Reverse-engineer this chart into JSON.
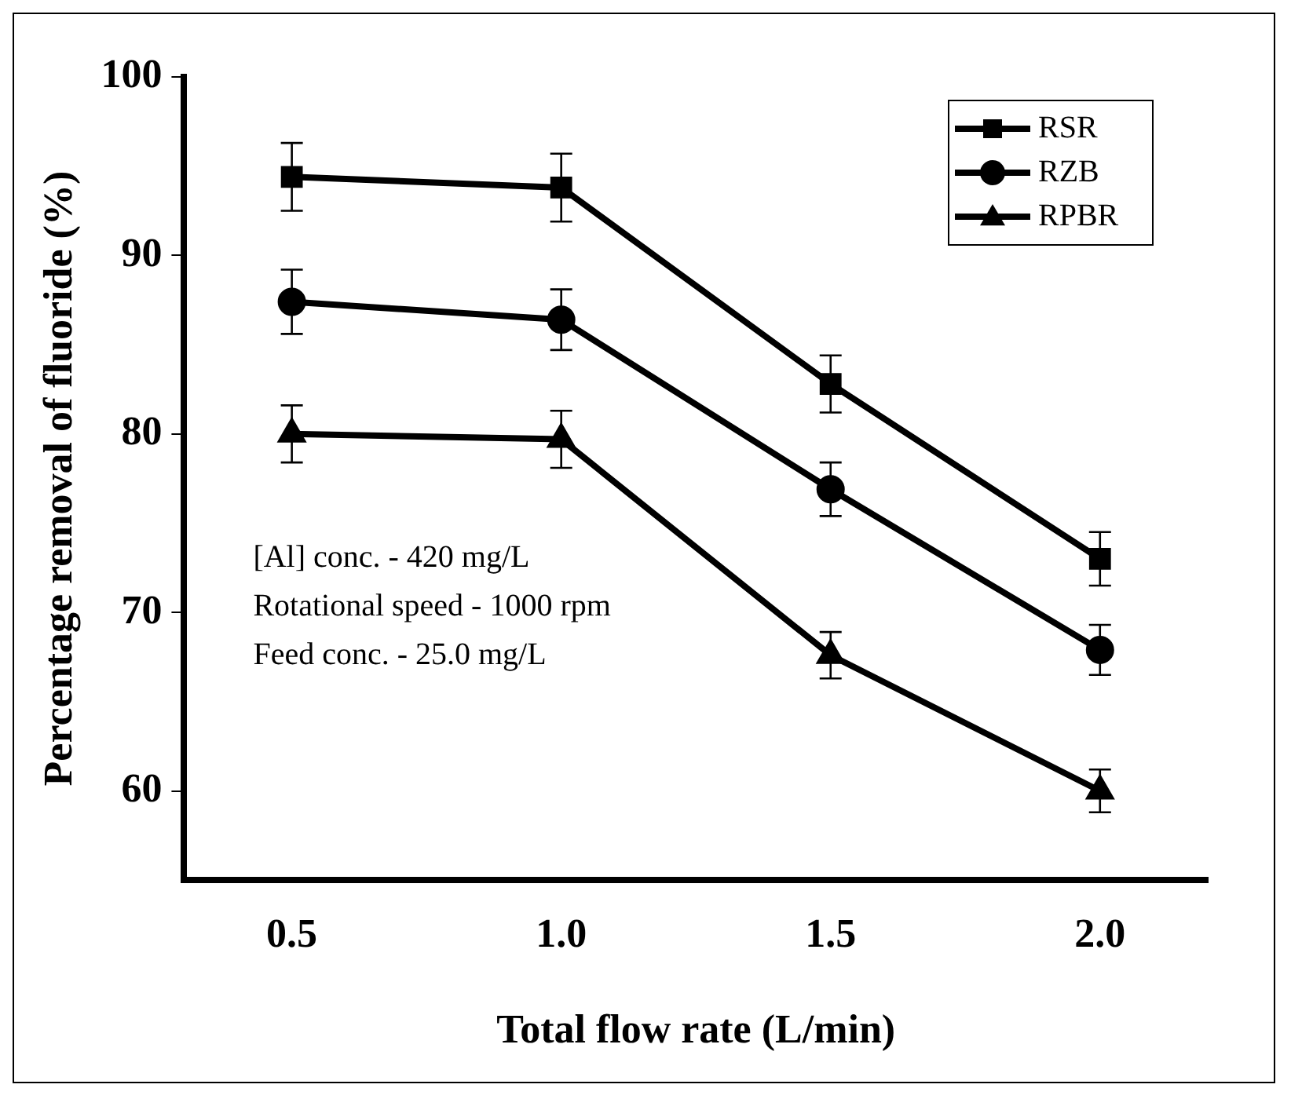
{
  "chart_data": {
    "type": "line",
    "xlabel": "Total flow rate (L/min)",
    "ylabel": "Percentage removal of fluoride (%)",
    "x": [
      0.5,
      1.0,
      1.5,
      2.0
    ],
    "series": [
      {
        "name": "RSR",
        "color": "#000000",
        "marker": "square",
        "values": [
          94.4,
          93.8,
          82.8,
          73.0
        ],
        "errors": [
          1.9,
          1.9,
          1.6,
          1.5
        ]
      },
      {
        "name": "RZB",
        "color": "#000000",
        "marker": "circle",
        "values": [
          87.4,
          86.4,
          76.9,
          67.9
        ],
        "errors": [
          1.8,
          1.7,
          1.5,
          1.4
        ]
      },
      {
        "name": "RPBR",
        "color": "#000000",
        "marker": "triangle",
        "values": [
          80.0,
          79.7,
          67.6,
          60.0
        ],
        "errors": [
          1.6,
          1.6,
          1.3,
          1.2
        ]
      }
    ],
    "xlim": [
      0.3,
      2.2
    ],
    "xticks": [
      {
        "value": 0.5,
        "label": "0.5"
      },
      {
        "value": 1.0,
        "label": "1.0"
      },
      {
        "value": 1.5,
        "label": "1.5"
      },
      {
        "value": 2.0,
        "label": "2.0"
      }
    ],
    "ylim": [
      55,
      100
    ],
    "yticks": [
      60,
      70,
      80,
      90,
      100
    ],
    "grid": false,
    "legend": "top right",
    "line_style": "solid",
    "annotations": [
      "[Al] conc. - 420 mg/L",
      "Rotational speed - 1000 rpm",
      "Feed conc. - 25.0 mg/L"
    ]
  }
}
